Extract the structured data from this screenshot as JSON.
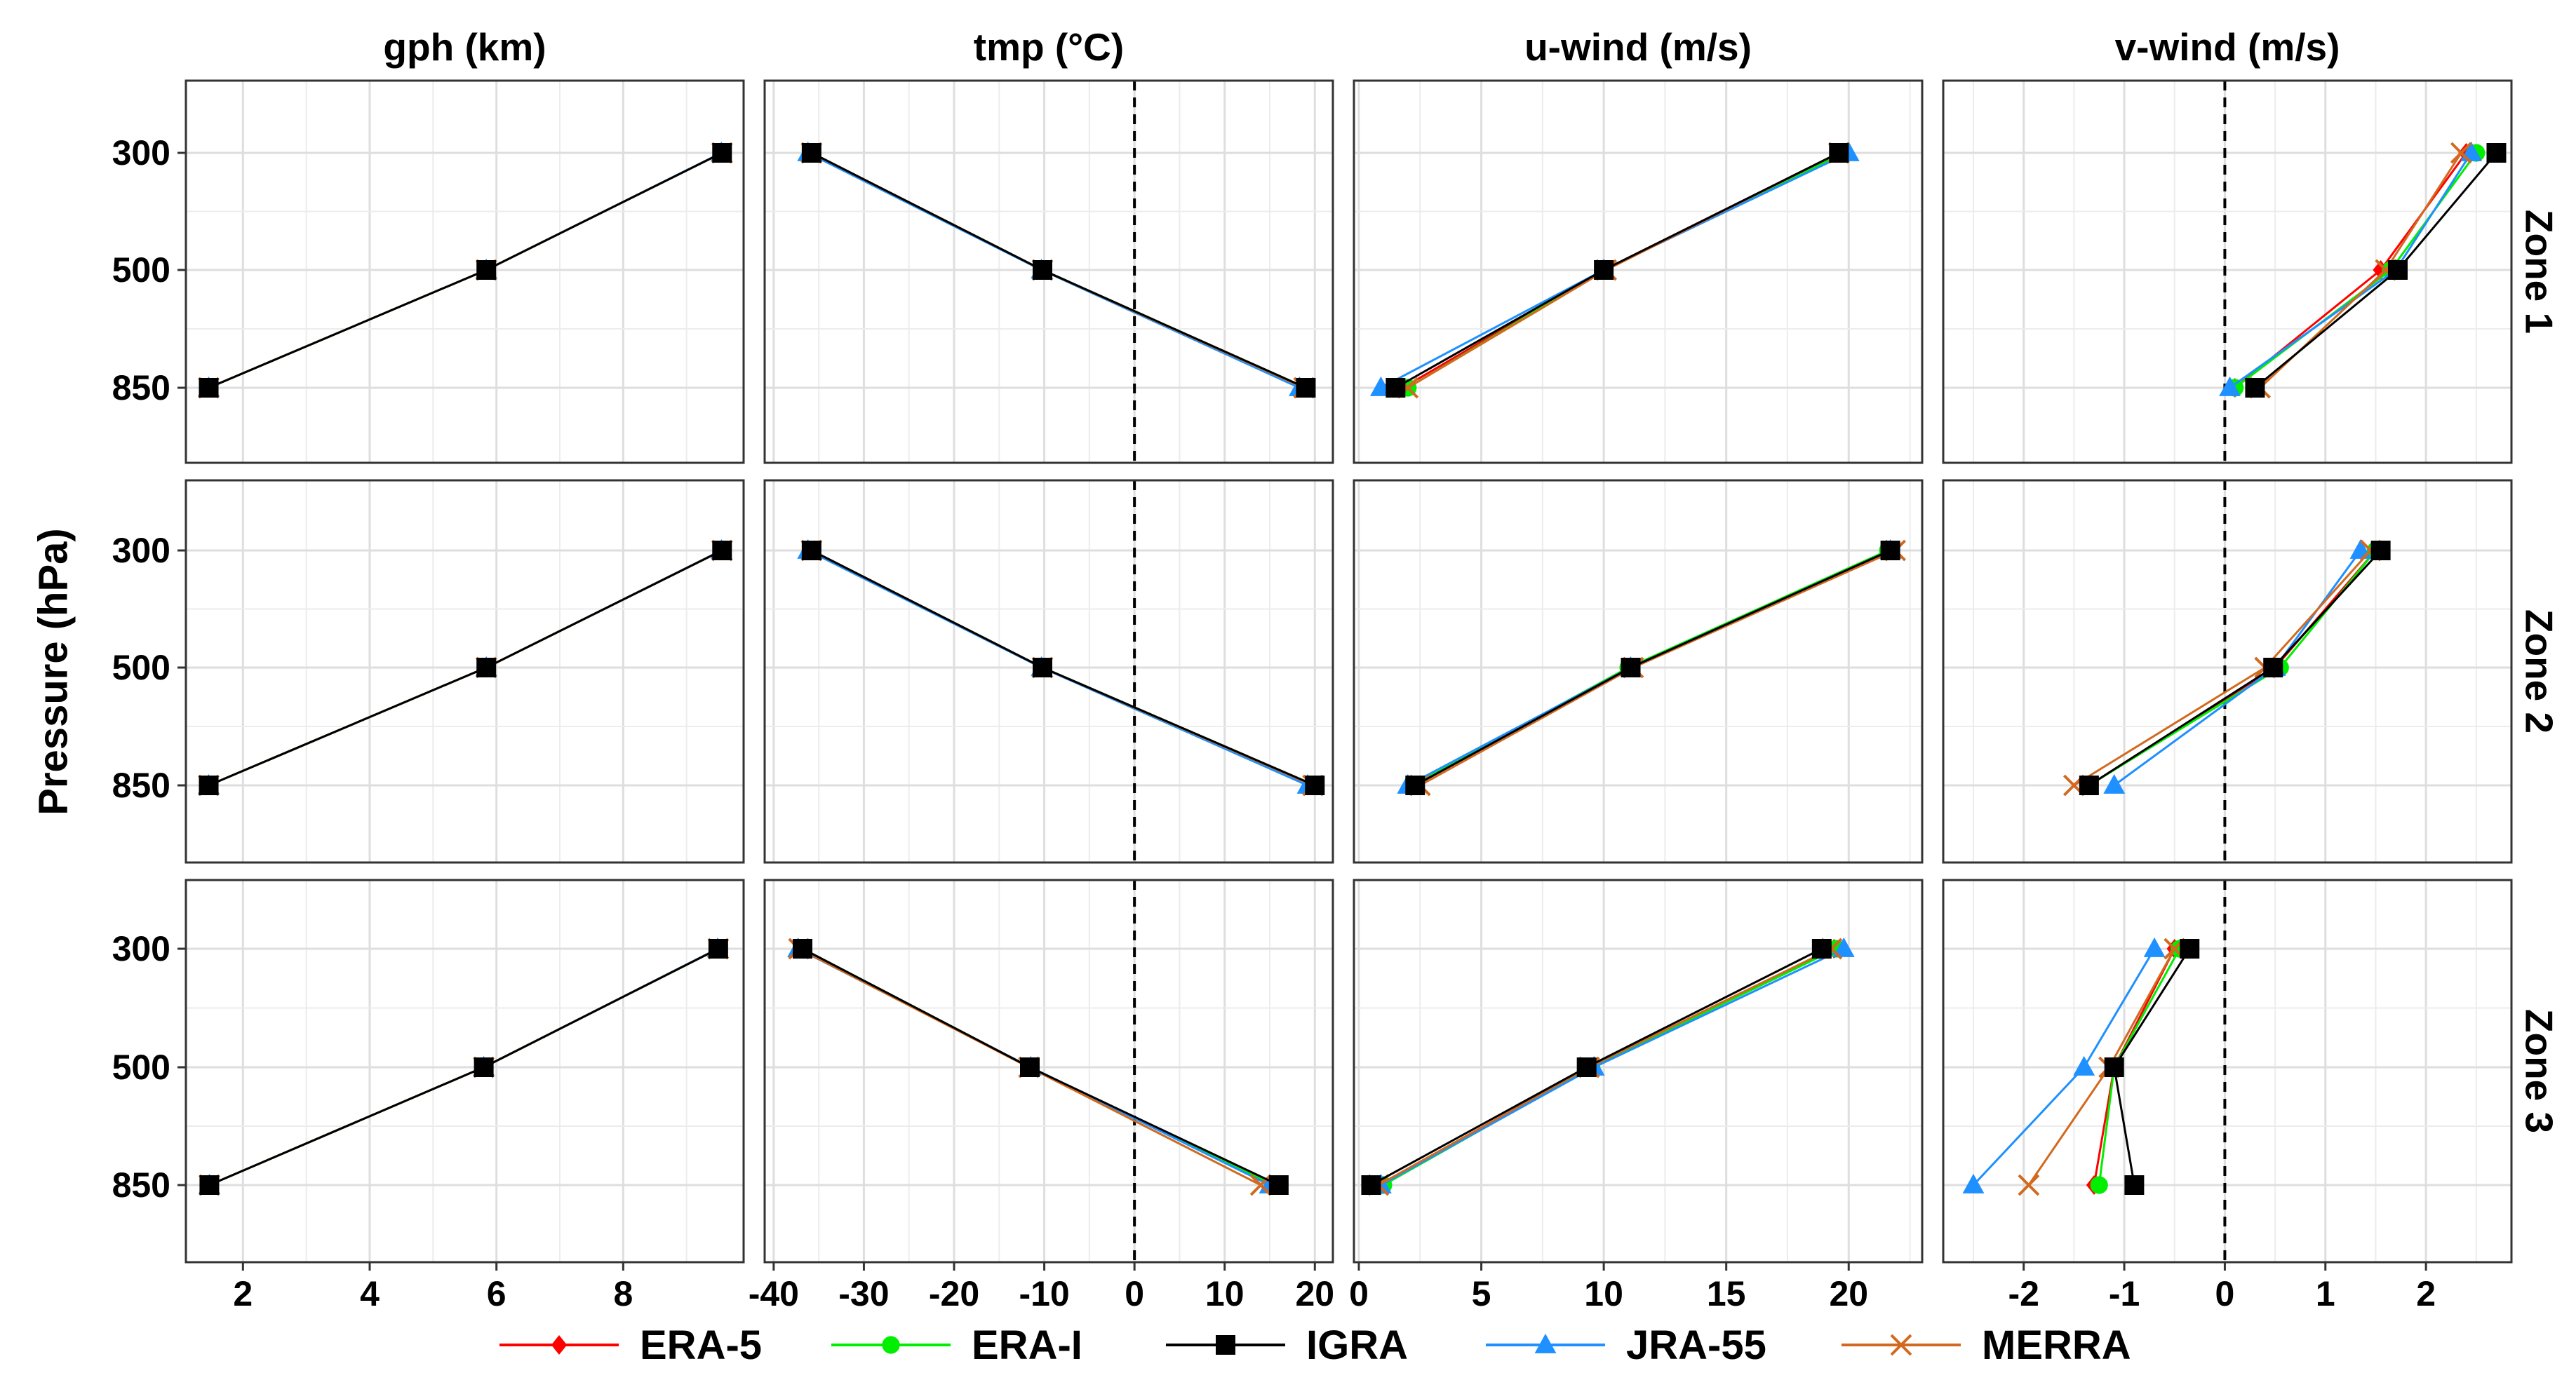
{
  "figure": {
    "ylabel": "Pressure (hPa)",
    "pressure_levels": [
      300,
      500,
      850
    ],
    "column_titles": [
      "gph (km)",
      "tmp (°C)",
      "u-wind (m/s)",
      "v-wind (m/s)"
    ],
    "row_titles": [
      "Zone 1",
      "Zone 2",
      "Zone 3"
    ],
    "x_axes": [
      {
        "variable": "gph",
        "range": [
          1.1,
          9.9
        ],
        "ticks": [
          2,
          4,
          6,
          8
        ],
        "tick_labels": [
          "2",
          "4",
          "6",
          "8"
        ],
        "zero_line": false
      },
      {
        "variable": "tmp",
        "range": [
          -41,
          22
        ],
        "ticks": [
          -40,
          -30,
          -20,
          -10,
          0,
          10,
          20
        ],
        "tick_labels": [
          "-40",
          "-30",
          "-20",
          "-10",
          "0",
          "10",
          "20"
        ],
        "zero_line": true
      },
      {
        "variable": "u-wind",
        "range": [
          -0.2,
          23
        ],
        "ticks": [
          0,
          5,
          10,
          15,
          20
        ],
        "tick_labels": [
          "0",
          "5",
          "10",
          "15",
          "20"
        ],
        "zero_line": false
      },
      {
        "variable": "v-wind",
        "range": [
          -2.8,
          2.85
        ],
        "ticks": [
          -2,
          -1,
          0,
          1,
          2
        ],
        "tick_labels": [
          "-2",
          "-1",
          "0",
          "1",
          "2"
        ],
        "zero_line": true
      }
    ],
    "y_tick_labels": [
      "300",
      "500",
      "850"
    ]
  },
  "legend": {
    "items": [
      {
        "name": "ERA-5",
        "color": "#ff0000",
        "marker": "diamond"
      },
      {
        "name": "ERA-I",
        "color": "#00ee00",
        "marker": "circle"
      },
      {
        "name": "IGRA",
        "color": "#000000",
        "marker": "square"
      },
      {
        "name": "JRA-55",
        "color": "#1e90ff",
        "marker": "triangle"
      },
      {
        "name": "MERRA",
        "color": "#d2691e",
        "marker": "cross"
      }
    ]
  },
  "chart_data": {
    "type": "line",
    "title": "",
    "ylabel": "Pressure (hPa)",
    "y_levels": [
      300,
      500,
      850
    ],
    "series_order": [
      "ERA-5",
      "ERA-I",
      "JRA-55",
      "MERRA",
      "IGRA"
    ],
    "panels": [
      {
        "zone": "Zone 1",
        "variable": "gph (km)",
        "series": [
          {
            "name": "ERA-5",
            "values": [
              9.56,
              5.84,
              1.46
            ]
          },
          {
            "name": "ERA-I",
            "values": [
              9.56,
              5.84,
              1.46
            ]
          },
          {
            "name": "JRA-55",
            "values": [
              9.55,
              5.84,
              1.46
            ]
          },
          {
            "name": "MERRA",
            "values": [
              9.56,
              5.84,
              1.46
            ]
          },
          {
            "name": "IGRA",
            "values": [
              9.56,
              5.84,
              1.46
            ]
          }
        ]
      },
      {
        "zone": "Zone 1",
        "variable": "tmp (°C)",
        "series": [
          {
            "name": "ERA-5",
            "values": [
              -35.8,
              -10.2,
              19.0
            ]
          },
          {
            "name": "ERA-I",
            "values": [
              -35.8,
              -10.2,
              19.0
            ]
          },
          {
            "name": "JRA-55",
            "values": [
              -36.2,
              -10.3,
              18.3
            ]
          },
          {
            "name": "MERRA",
            "values": [
              -35.8,
              -10.2,
              18.8
            ]
          },
          {
            "name": "IGRA",
            "values": [
              -35.8,
              -10.2,
              19.0
            ]
          }
        ]
      },
      {
        "zone": "Zone 1",
        "variable": "u-wind (m/s)",
        "series": [
          {
            "name": "ERA-5",
            "values": [
              19.6,
              10.0,
              1.8
            ]
          },
          {
            "name": "ERA-I",
            "values": [
              19.8,
              10.0,
              2.0
            ]
          },
          {
            "name": "JRA-55",
            "values": [
              20.0,
              10.0,
              0.9
            ]
          },
          {
            "name": "MERRA",
            "values": [
              19.6,
              10.1,
              2.0
            ]
          },
          {
            "name": "IGRA",
            "values": [
              19.6,
              10.0,
              1.5
            ]
          }
        ]
      },
      {
        "zone": "Zone 1",
        "variable": "v-wind (m/s)",
        "series": [
          {
            "name": "ERA-5",
            "values": [
              2.4,
              1.55,
              0.1
            ]
          },
          {
            "name": "ERA-I",
            "values": [
              2.5,
              1.65,
              0.1
            ]
          },
          {
            "name": "JRA-55",
            "values": [
              2.45,
              1.7,
              0.05
            ]
          },
          {
            "name": "MERRA",
            "values": [
              2.35,
              1.6,
              0.35
            ]
          },
          {
            "name": "IGRA",
            "values": [
              2.7,
              1.72,
              0.3
            ]
          }
        ]
      },
      {
        "zone": "Zone 2",
        "variable": "gph (km)",
        "series": [
          {
            "name": "ERA-5",
            "values": [
              9.56,
              5.84,
              1.46
            ]
          },
          {
            "name": "ERA-I",
            "values": [
              9.56,
              5.84,
              1.46
            ]
          },
          {
            "name": "JRA-55",
            "values": [
              9.55,
              5.84,
              1.46
            ]
          },
          {
            "name": "MERRA",
            "values": [
              9.56,
              5.84,
              1.46
            ]
          },
          {
            "name": "IGRA",
            "values": [
              9.56,
              5.84,
              1.46
            ]
          }
        ]
      },
      {
        "zone": "Zone 2",
        "variable": "tmp (°C)",
        "series": [
          {
            "name": "ERA-5",
            "values": [
              -35.8,
              -10.2,
              20.0
            ]
          },
          {
            "name": "ERA-I",
            "values": [
              -35.8,
              -10.2,
              20.0
            ]
          },
          {
            "name": "JRA-55",
            "values": [
              -36.2,
              -10.3,
              19.2
            ]
          },
          {
            "name": "MERRA",
            "values": [
              -35.8,
              -10.2,
              19.8
            ]
          },
          {
            "name": "IGRA",
            "values": [
              -35.8,
              -10.2,
              20.0
            ]
          }
        ]
      },
      {
        "zone": "Zone 2",
        "variable": "u-wind (m/s)",
        "series": [
          {
            "name": "ERA-5",
            "values": [
              21.7,
              11.1,
              2.3
            ]
          },
          {
            "name": "ERA-I",
            "values": [
              21.6,
              11.0,
              2.2
            ]
          },
          {
            "name": "JRA-55",
            "values": [
              21.7,
              11.1,
              2.0
            ]
          },
          {
            "name": "MERRA",
            "values": [
              21.9,
              11.2,
              2.5
            ]
          },
          {
            "name": "IGRA",
            "values": [
              21.7,
              11.1,
              2.3
            ]
          }
        ]
      },
      {
        "zone": "Zone 2",
        "variable": "v-wind (m/s)",
        "series": [
          {
            "name": "ERA-5",
            "values": [
              1.5,
              0.5,
              -1.35
            ]
          },
          {
            "name": "ERA-I",
            "values": [
              1.5,
              0.55,
              -1.35
            ]
          },
          {
            "name": "JRA-55",
            "values": [
              1.35,
              0.5,
              -1.1
            ]
          },
          {
            "name": "MERRA",
            "values": [
              1.45,
              0.4,
              -1.5
            ]
          },
          {
            "name": "IGRA",
            "values": [
              1.55,
              0.48,
              -1.35
            ]
          }
        ]
      },
      {
        "zone": "Zone 3",
        "variable": "gph (km)",
        "series": [
          {
            "name": "ERA-5",
            "values": [
              9.5,
              5.8,
              1.47
            ]
          },
          {
            "name": "ERA-I",
            "values": [
              9.5,
              5.8,
              1.47
            ]
          },
          {
            "name": "JRA-55",
            "values": [
              9.49,
              5.8,
              1.47
            ]
          },
          {
            "name": "MERRA",
            "values": [
              9.5,
              5.8,
              1.47
            ]
          },
          {
            "name": "IGRA",
            "values": [
              9.5,
              5.8,
              1.47
            ]
          }
        ]
      },
      {
        "zone": "Zone 3",
        "variable": "tmp (°C)",
        "series": [
          {
            "name": "ERA-5",
            "values": [
              -36.8,
              -11.6,
              15.5
            ]
          },
          {
            "name": "ERA-I",
            "values": [
              -36.8,
              -11.6,
              15.5
            ]
          },
          {
            "name": "JRA-55",
            "values": [
              -37.3,
              -11.5,
              15.0
            ]
          },
          {
            "name": "MERRA",
            "values": [
              -37.2,
              -11.7,
              14.0
            ]
          },
          {
            "name": "IGRA",
            "values": [
              -36.8,
              -11.6,
              16.0
            ]
          }
        ]
      },
      {
        "zone": "Zone 3",
        "variable": "u-wind (m/s)",
        "series": [
          {
            "name": "ERA-5",
            "values": [
              19.4,
              9.4,
              0.9
            ]
          },
          {
            "name": "ERA-I",
            "values": [
              19.5,
              9.5,
              1.0
            ]
          },
          {
            "name": "JRA-55",
            "values": [
              19.8,
              9.6,
              0.9
            ]
          },
          {
            "name": "MERRA",
            "values": [
              19.3,
              9.4,
              0.8
            ]
          },
          {
            "name": "IGRA",
            "values": [
              18.9,
              9.3,
              0.5
            ]
          }
        ]
      },
      {
        "zone": "Zone 3",
        "variable": "v-wind (m/s)",
        "series": [
          {
            "name": "ERA-5",
            "values": [
              -0.5,
              -1.1,
              -1.3
            ]
          },
          {
            "name": "ERA-I",
            "values": [
              -0.45,
              -1.1,
              -1.25
            ]
          },
          {
            "name": "JRA-55",
            "values": [
              -0.7,
              -1.4,
              -2.5
            ]
          },
          {
            "name": "MERRA",
            "values": [
              -0.5,
              -1.15,
              -1.95
            ]
          },
          {
            "name": "IGRA",
            "values": [
              -0.35,
              -1.1,
              -0.9
            ]
          }
        ]
      }
    ]
  }
}
